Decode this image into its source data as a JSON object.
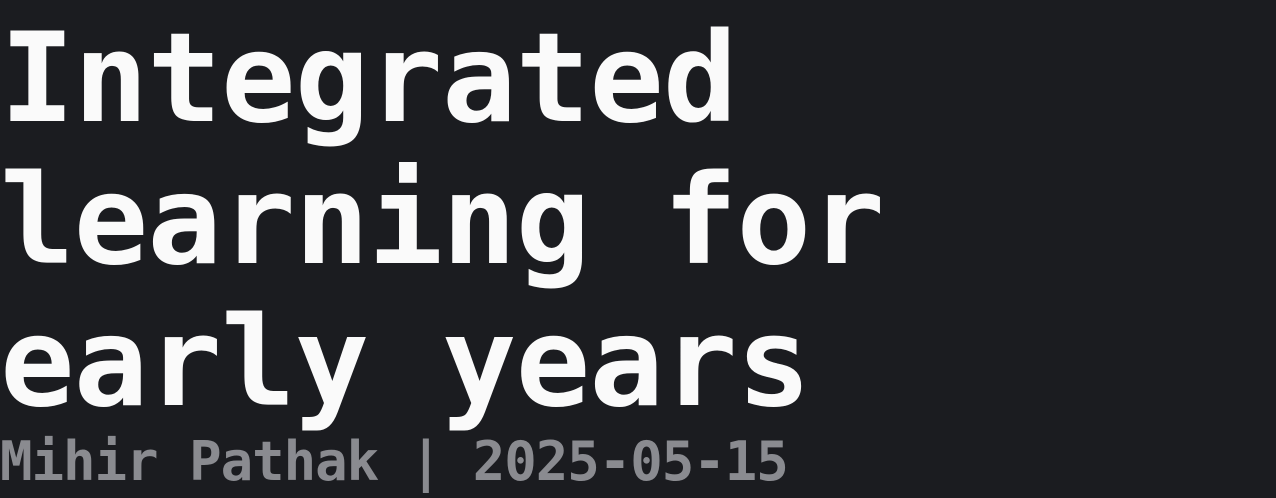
{
  "title": {
    "lines": [
      "Integrated",
      "learning for",
      "early years"
    ]
  },
  "byline": {
    "author": "Mihir Pathak",
    "separator": "|",
    "date": "2025-05-15"
  },
  "colors": {
    "background": "#1b1c20",
    "title": "#fafafa",
    "byline": "#8a8b90"
  }
}
